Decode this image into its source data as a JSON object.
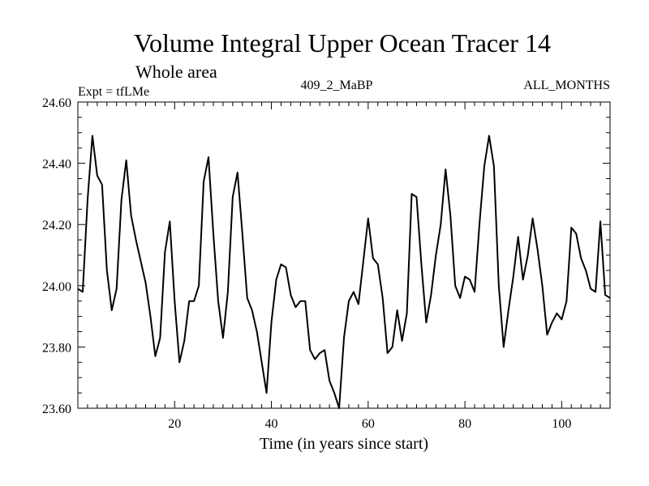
{
  "chart_data": {
    "type": "line",
    "title": "Volume Integral Upper Ocean Tracer 14",
    "subtitle": "Whole area",
    "header_left": "Expt = tfLMe",
    "header_center": "409_2_MaBP",
    "header_right": "ALL_MONTHS",
    "xlabel": "Time (in years since start)",
    "ylabel": "",
    "xlim": [
      0,
      110
    ],
    "ylim": [
      23.6,
      24.6
    ],
    "xticks": [
      20,
      40,
      60,
      80,
      100
    ],
    "xtick_labels": [
      "20",
      "40",
      "60",
      "80",
      "100"
    ],
    "yticks": [
      23.6,
      23.8,
      24.0,
      24.2,
      24.4,
      24.6
    ],
    "ytick_labels": [
      "23.60",
      "23.80",
      "24.00",
      "24.20",
      "24.40",
      "24.60"
    ],
    "series": [
      {
        "name": "tracer14",
        "color": "#000000",
        "x": [
          0,
          1,
          2,
          3,
          4,
          5,
          6,
          7,
          8,
          9,
          10,
          11,
          12,
          13,
          14,
          15,
          16,
          17,
          18,
          19,
          20,
          21,
          22,
          23,
          24,
          25,
          26,
          27,
          28,
          29,
          30,
          31,
          32,
          33,
          34,
          35,
          36,
          37,
          38,
          39,
          40,
          41,
          42,
          43,
          44,
          45,
          46,
          47,
          48,
          49,
          50,
          51,
          52,
          53,
          54,
          55,
          56,
          57,
          58,
          59,
          60,
          61,
          62,
          63,
          64,
          65,
          66,
          67,
          68,
          69,
          70,
          71,
          72,
          73,
          74,
          75,
          76,
          77,
          78,
          79,
          80,
          81,
          82,
          83,
          84,
          85,
          86,
          87,
          88,
          89,
          90,
          91,
          92,
          93,
          94,
          95,
          96,
          97,
          98,
          99,
          100,
          101,
          102,
          103,
          104,
          105,
          106,
          107,
          108,
          109,
          110
        ],
        "values": [
          23.99,
          23.98,
          24.28,
          24.49,
          24.36,
          24.33,
          24.05,
          23.92,
          23.99,
          24.28,
          24.41,
          24.23,
          24.15,
          24.08,
          24.01,
          23.9,
          23.77,
          23.83,
          24.11,
          24.21,
          23.95,
          23.75,
          23.82,
          23.95,
          23.95,
          24.0,
          24.34,
          24.42,
          24.17,
          23.95,
          23.83,
          23.98,
          24.29,
          24.37,
          24.17,
          23.96,
          23.92,
          23.85,
          23.75,
          23.65,
          23.88,
          24.02,
          24.07,
          24.06,
          23.97,
          23.93,
          23.95,
          23.95,
          23.79,
          23.76,
          23.78,
          23.79,
          23.69,
          23.65,
          23.6,
          23.83,
          23.95,
          23.98,
          23.94,
          24.08,
          24.22,
          24.09,
          24.07,
          23.96,
          23.78,
          23.8,
          23.92,
          23.82,
          23.91,
          24.3,
          24.29,
          24.07,
          23.88,
          23.97,
          24.1,
          24.2,
          24.38,
          24.23,
          24.0,
          23.96,
          24.03,
          24.02,
          23.98,
          24.2,
          24.39,
          24.49,
          24.39,
          24.0,
          23.8,
          23.92,
          24.03,
          24.16,
          24.02,
          24.1,
          24.22,
          24.12,
          24.0,
          23.84,
          23.88,
          23.91,
          23.89,
          23.95,
          24.19,
          24.17,
          24.09,
          24.05,
          23.99,
          23.98,
          24.21,
          23.97,
          23.96
        ]
      }
    ]
  }
}
